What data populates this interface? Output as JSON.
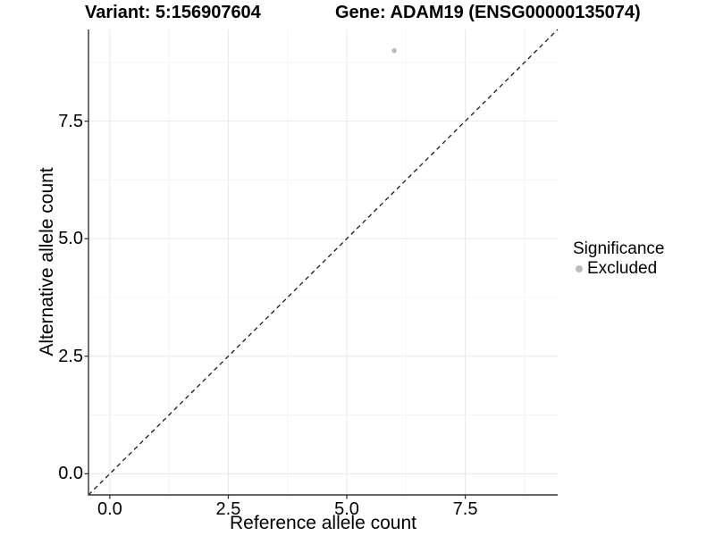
{
  "titles": {
    "variant": "Variant: 5:156907604",
    "gene": "Gene: ADAM19 (ENSG00000135074)"
  },
  "chart_data": {
    "type": "scatter",
    "xlabel": "Reference allele count",
    "ylabel": "Alternative allele count",
    "xlim": [
      -0.45,
      9.45
    ],
    "ylim": [
      -0.45,
      9.45
    ],
    "x_ticks": [
      0,
      2.5,
      5,
      7.5
    ],
    "x_tick_labels": [
      "0.0",
      "2.5",
      "5.0",
      "7.5"
    ],
    "y_ticks": [
      0,
      2.5,
      5,
      7.5
    ],
    "y_tick_labels": [
      "0.0",
      "2.5",
      "5.0",
      "7.5"
    ],
    "minor_ticks": [
      1.25,
      3.75,
      6.25,
      8.75
    ],
    "grid": true,
    "points": [
      {
        "x": 6,
        "y": 9,
        "series": "Excluded"
      }
    ],
    "reference_line": {
      "slope": 1,
      "intercept": 0,
      "style": "dashed",
      "color": "#1a1a1a"
    },
    "point_color": "#bdbdbd",
    "colors": {
      "grid_major": "#e8e8e8",
      "grid_minor": "#f4f4f4",
      "axis_line": "#333333",
      "excluded_gray": "#bdbdbd"
    },
    "legend": {
      "title": "Significance",
      "position": "right",
      "items": [
        {
          "label": "Excluded",
          "color": "#bdbdbd"
        }
      ]
    }
  }
}
